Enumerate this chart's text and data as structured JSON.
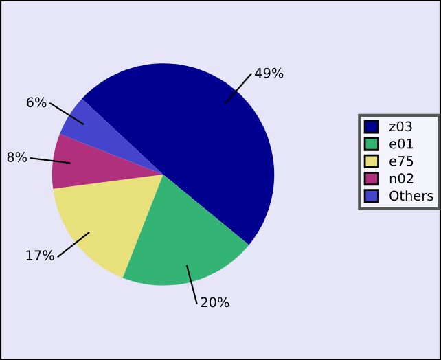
{
  "chart_data": {
    "type": "pie",
    "categories": [
      "z03",
      "e01",
      "e75",
      "n02",
      "Others"
    ],
    "values": [
      49,
      20,
      17,
      8,
      6
    ],
    "colors": [
      "#000090",
      "#33b474",
      "#e8e07a",
      "#b0307e",
      "#4444cc"
    ],
    "value_labels": [
      "49%",
      "20%",
      "17%",
      "8%",
      "6%"
    ],
    "legend": "right"
  }
}
